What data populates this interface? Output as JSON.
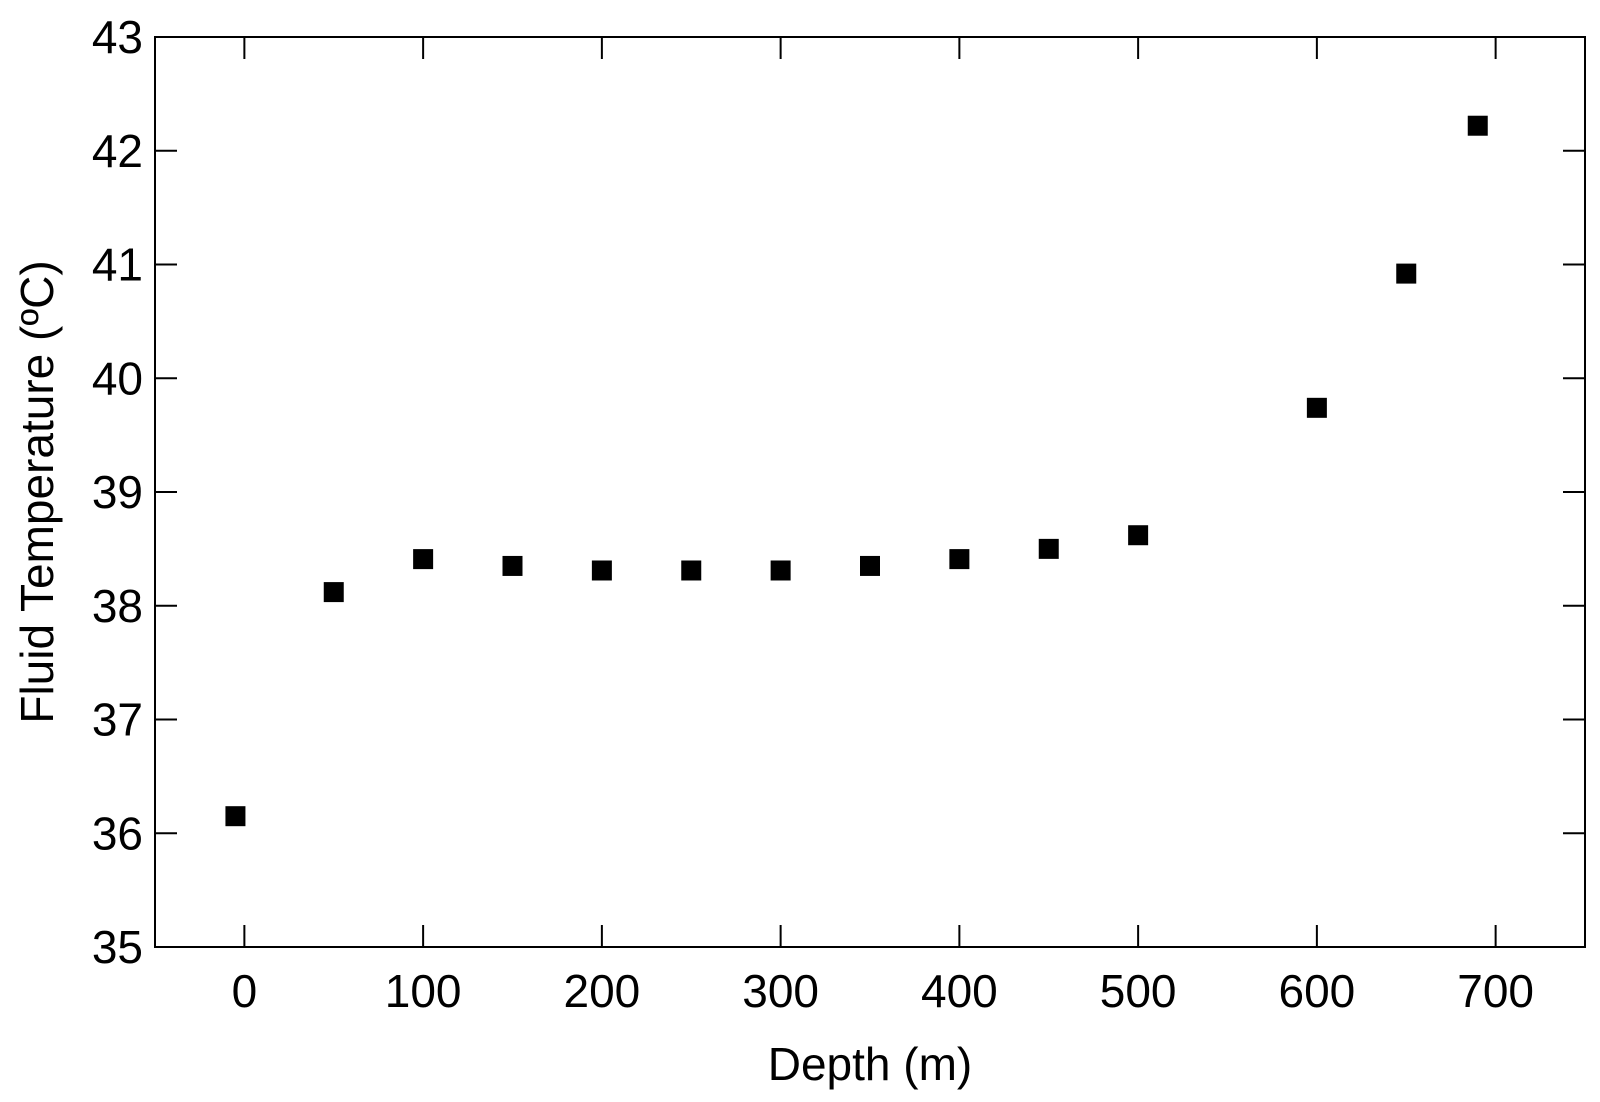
{
  "chart_data": {
    "type": "scatter",
    "title": "",
    "xlabel": "Depth (m)",
    "ylabel": "Fluid Temperature (ºC)",
    "xlim": [
      -50,
      750
    ],
    "ylim": [
      35,
      43
    ],
    "x_ticks": [
      0,
      100,
      200,
      300,
      400,
      500,
      600,
      700
    ],
    "y_ticks": [
      35,
      36,
      37,
      38,
      39,
      40,
      41,
      42,
      43
    ],
    "grid": false,
    "marker": "square",
    "marker_color": "#000000",
    "series": [
      {
        "x": [
          -5,
          50,
          100,
          150,
          200,
          250,
          300,
          350,
          400,
          450,
          500,
          600,
          650,
          690
        ],
        "y": [
          36.15,
          38.12,
          38.41,
          38.35,
          38.31,
          38.31,
          38.31,
          38.35,
          38.41,
          38.5,
          38.62,
          39.74,
          40.92,
          42.22
        ]
      }
    ]
  }
}
